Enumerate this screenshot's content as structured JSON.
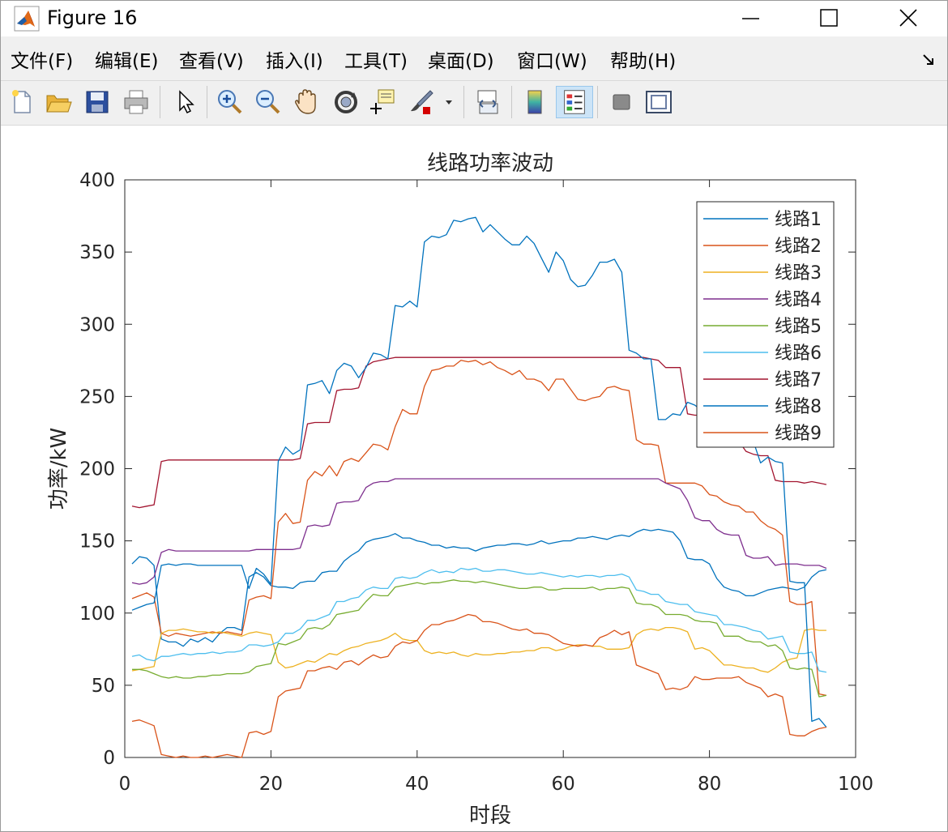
{
  "window": {
    "title": "Figure 16"
  },
  "menu": [
    {
      "label": "文件(F)"
    },
    {
      "label": "编辑(E)"
    },
    {
      "label": "查看(V)"
    },
    {
      "label": "插入(I)"
    },
    {
      "label": "工具(T)"
    },
    {
      "label": "桌面(D)"
    },
    {
      "label": "窗口(W)"
    },
    {
      "label": "帮助(H)"
    }
  ],
  "toolbar": {
    "icons": [
      "new-figure-icon",
      "open-file-icon",
      "save-icon",
      "print-icon",
      "edit-plot-arrow-icon",
      "zoom-in-icon",
      "zoom-out-icon",
      "pan-hand-icon",
      "rotate-3d-icon",
      "data-cursor-icon",
      "brush-icon",
      "link-plot-icon",
      "colorbar-icon",
      "legend-icon",
      "hide-plot-tools-icon",
      "show-plot-tools-icon"
    ],
    "brush_color": "#d40000",
    "active_icon": "legend-icon"
  },
  "chart_data": {
    "type": "line",
    "title": "线路功率波动",
    "xlabel": "时段",
    "ylabel": "功率/kW",
    "xlim": [
      0,
      100
    ],
    "ylim": [
      0,
      400
    ],
    "xticks": [
      0,
      20,
      40,
      60,
      80,
      100
    ],
    "yticks": [
      0,
      50,
      100,
      150,
      200,
      250,
      300,
      350,
      400
    ],
    "grid": false,
    "legend_position": "top-right",
    "x": [
      1,
      2,
      3,
      4,
      5,
      6,
      7,
      8,
      9,
      10,
      11,
      12,
      13,
      14,
      15,
      16,
      17,
      18,
      19,
      20,
      21,
      22,
      23,
      24,
      25,
      26,
      27,
      28,
      29,
      30,
      31,
      32,
      33,
      34,
      35,
      36,
      37,
      38,
      39,
      40,
      41,
      42,
      43,
      44,
      45,
      46,
      47,
      48,
      49,
      50,
      51,
      52,
      53,
      54,
      55,
      56,
      57,
      58,
      59,
      60,
      61,
      62,
      63,
      64,
      65,
      66,
      67,
      68,
      69,
      70,
      71,
      72,
      73,
      74,
      75,
      76,
      77,
      78,
      79,
      80,
      81,
      82,
      83,
      84,
      85,
      86,
      87,
      88,
      89,
      90,
      91,
      92,
      93,
      94,
      95,
      96
    ],
    "series": [
      {
        "name": "线路1",
        "color": "#0072bd",
        "values": [
          134,
          139,
          138,
          133,
          82,
          80,
          80,
          77,
          82,
          80,
          83,
          80,
          86,
          90,
          90,
          88,
          125,
          128,
          125,
          119,
          118,
          118,
          117,
          121,
          122,
          122,
          128,
          129,
          129,
          136,
          140,
          143,
          149,
          151,
          152,
          153,
          155,
          152,
          152,
          150,
          149,
          147,
          147,
          145,
          146,
          145,
          145,
          143,
          145,
          146,
          147,
          147,
          148,
          148,
          147,
          148,
          150,
          148,
          149,
          150,
          150,
          152,
          152,
          153,
          152,
          151,
          153,
          154,
          153,
          156,
          158,
          157,
          158,
          157,
          156,
          150,
          138,
          137,
          137,
          134,
          124,
          118,
          116,
          115,
          112,
          112,
          114,
          116,
          117,
          118,
          117,
          116,
          118,
          125,
          129,
          130
        ]
      },
      {
        "name": "线路2",
        "color": "#d95319",
        "values": [
          110,
          112,
          114,
          111,
          86,
          84,
          86,
          85,
          84,
          85,
          86,
          87,
          86,
          87,
          86,
          85,
          109,
          111,
          112,
          110,
          163,
          169,
          162,
          163,
          192,
          198,
          195,
          202,
          195,
          205,
          207,
          205,
          211,
          217,
          216,
          213,
          229,
          241,
          238,
          238,
          257,
          268,
          269,
          271,
          271,
          275,
          274,
          275,
          272,
          274,
          270,
          268,
          265,
          268,
          262,
          262,
          260,
          254,
          262,
          262,
          255,
          248,
          247,
          249,
          250,
          256,
          257,
          255,
          254,
          220,
          217,
          217,
          216,
          190,
          190,
          190,
          190,
          190,
          188,
          182,
          181,
          177,
          175,
          174,
          170,
          170,
          164,
          160,
          158,
          154,
          108,
          106,
          106,
          108,
          44,
          43
        ]
      },
      {
        "name": "线路3",
        "color": "#edb120",
        "values": [
          60,
          61,
          62,
          63,
          86,
          88,
          88,
          89,
          88,
          87,
          87,
          86,
          87,
          86,
          85,
          84,
          86,
          87,
          86,
          85,
          66,
          62,
          63,
          65,
          67,
          66,
          69,
          72,
          71,
          74,
          76,
          77,
          79,
          80,
          81,
          83,
          86,
          82,
          81,
          81,
          74,
          72,
          73,
          72,
          73,
          71,
          70,
          72,
          71,
          71,
          72,
          72,
          73,
          73,
          74,
          74,
          76,
          76,
          74,
          75,
          77,
          78,
          78,
          77,
          77,
          75,
          75,
          75,
          76,
          85,
          88,
          89,
          88,
          90,
          90,
          89,
          87,
          75,
          76,
          74,
          69,
          64,
          64,
          63,
          62,
          62,
          60,
          59,
          62,
          66,
          68,
          69,
          88,
          89,
          88,
          88
        ]
      },
      {
        "name": "线路4",
        "color": "#7e2f8e",
        "values": [
          121,
          120,
          121,
          125,
          142,
          144,
          143,
          143,
          143,
          143,
          143,
          143,
          143,
          143,
          143,
          143,
          143,
          144,
          144,
          144,
          144,
          144,
          144,
          145,
          160,
          161,
          160,
          161,
          176,
          177,
          177,
          178,
          187,
          190,
          191,
          191,
          193,
          193,
          193,
          193,
          193,
          193,
          193,
          193,
          193,
          193,
          193,
          193,
          193,
          193,
          193,
          193,
          193,
          193,
          193,
          193,
          193,
          193,
          193,
          193,
          193,
          193,
          193,
          193,
          193,
          193,
          193,
          193,
          193,
          193,
          193,
          193,
          193,
          190,
          188,
          186,
          178,
          166,
          164,
          164,
          158,
          155,
          154,
          154,
          140,
          138,
          138,
          139,
          133,
          134,
          134,
          134,
          133,
          133,
          133,
          131
        ]
      },
      {
        "name": "线路5",
        "color": "#77ac30",
        "values": [
          61,
          61,
          60,
          58,
          56,
          55,
          56,
          55,
          55,
          56,
          56,
          57,
          57,
          58,
          58,
          58,
          59,
          63,
          64,
          65,
          79,
          78,
          80,
          82,
          89,
          90,
          89,
          92,
          99,
          100,
          101,
          102,
          108,
          113,
          112,
          112,
          118,
          119,
          120,
          121,
          120,
          121,
          121,
          122,
          123,
          122,
          122,
          121,
          122,
          121,
          120,
          119,
          118,
          117,
          117,
          118,
          118,
          116,
          116,
          117,
          117,
          117,
          117,
          118,
          116,
          117,
          117,
          118,
          117,
          107,
          106,
          106,
          104,
          99,
          99,
          99,
          98,
          95,
          94,
          94,
          93,
          84,
          84,
          84,
          81,
          80,
          80,
          77,
          78,
          74,
          62,
          61,
          62,
          61,
          42,
          43
        ]
      },
      {
        "name": "线路6",
        "color": "#4dbeee",
        "values": [
          70,
          71,
          68,
          67,
          70,
          70,
          71,
          72,
          71,
          72,
          72,
          73,
          72,
          73,
          73,
          74,
          78,
          78,
          77,
          78,
          80,
          86,
          86,
          89,
          95,
          95,
          97,
          99,
          108,
          108,
          110,
          111,
          116,
          118,
          117,
          117,
          124,
          125,
          124,
          125,
          128,
          130,
          128,
          129,
          128,
          131,
          130,
          131,
          129,
          129,
          130,
          130,
          129,
          128,
          127,
          127,
          128,
          127,
          126,
          125,
          126,
          125,
          126,
          126,
          125,
          126,
          126,
          127,
          125,
          116,
          115,
          113,
          113,
          108,
          107,
          106,
          106,
          101,
          100,
          99,
          98,
          92,
          92,
          91,
          90,
          88,
          87,
          82,
          83,
          84,
          73,
          72,
          72,
          73,
          60,
          59
        ]
      },
      {
        "name": "线路7",
        "color": "#a2142f",
        "values": [
          174,
          173,
          174,
          175,
          205,
          206,
          206,
          206,
          206,
          206,
          206,
          206,
          206,
          206,
          206,
          206,
          206,
          206,
          206,
          206,
          206,
          206,
          206,
          207,
          231,
          232,
          232,
          232,
          254,
          255,
          255,
          256,
          271,
          274,
          275,
          276,
          277,
          277,
          277,
          277,
          277,
          277,
          277,
          277,
          277,
          277,
          277,
          277,
          277,
          277,
          277,
          277,
          277,
          277,
          277,
          277,
          277,
          277,
          277,
          277,
          277,
          277,
          277,
          277,
          277,
          277,
          277,
          277,
          277,
          277,
          277,
          276,
          275,
          270,
          270,
          270,
          238,
          237,
          237,
          237,
          222,
          220,
          219,
          219,
          212,
          210,
          209,
          209,
          192,
          191,
          191,
          191,
          190,
          191,
          190,
          189
        ]
      },
      {
        "name": "线路8",
        "color": "#0072bd",
        "values": [
          102,
          104,
          106,
          107,
          133,
          134,
          133,
          134,
          134,
          133,
          133,
          133,
          133,
          133,
          133,
          133,
          117,
          131,
          127,
          120,
          205,
          215,
          210,
          213,
          258,
          259,
          261,
          252,
          268,
          273,
          271,
          263,
          270,
          280,
          279,
          276,
          313,
          312,
          316,
          312,
          357,
          361,
          360,
          362,
          372,
          371,
          373,
          374,
          364,
          369,
          364,
          359,
          355,
          355,
          361,
          356,
          346,
          336,
          350,
          344,
          331,
          326,
          327,
          334,
          343,
          343,
          345,
          336,
          282,
          280,
          276,
          276,
          234,
          234,
          238,
          237,
          246,
          244,
          240,
          240,
          231,
          226,
          224,
          220,
          223,
          219,
          204,
          208,
          205,
          204,
          122,
          121,
          121,
          25,
          27,
          21
        ]
      },
      {
        "name": "线路9",
        "color": "#d95319",
        "values": [
          25,
          26,
          24,
          22,
          2,
          1,
          0,
          1,
          0,
          0,
          1,
          0,
          1,
          2,
          1,
          0,
          17,
          18,
          16,
          18,
          42,
          46,
          47,
          48,
          60,
          60,
          62,
          63,
          61,
          66,
          67,
          64,
          68,
          71,
          69,
          70,
          77,
          80,
          79,
          81,
          88,
          92,
          92,
          94,
          95,
          97,
          99,
          98,
          94,
          94,
          93,
          91,
          89,
          88,
          89,
          86,
          86,
          85,
          82,
          79,
          78,
          77,
          78,
          77,
          83,
          85,
          88,
          85,
          87,
          64,
          62,
          60,
          58,
          47,
          48,
          47,
          49,
          56,
          54,
          54,
          55,
          55,
          55,
          56,
          52,
          50,
          48,
          42,
          44,
          42,
          16,
          15,
          15,
          18,
          20,
          21
        ]
      }
    ]
  }
}
